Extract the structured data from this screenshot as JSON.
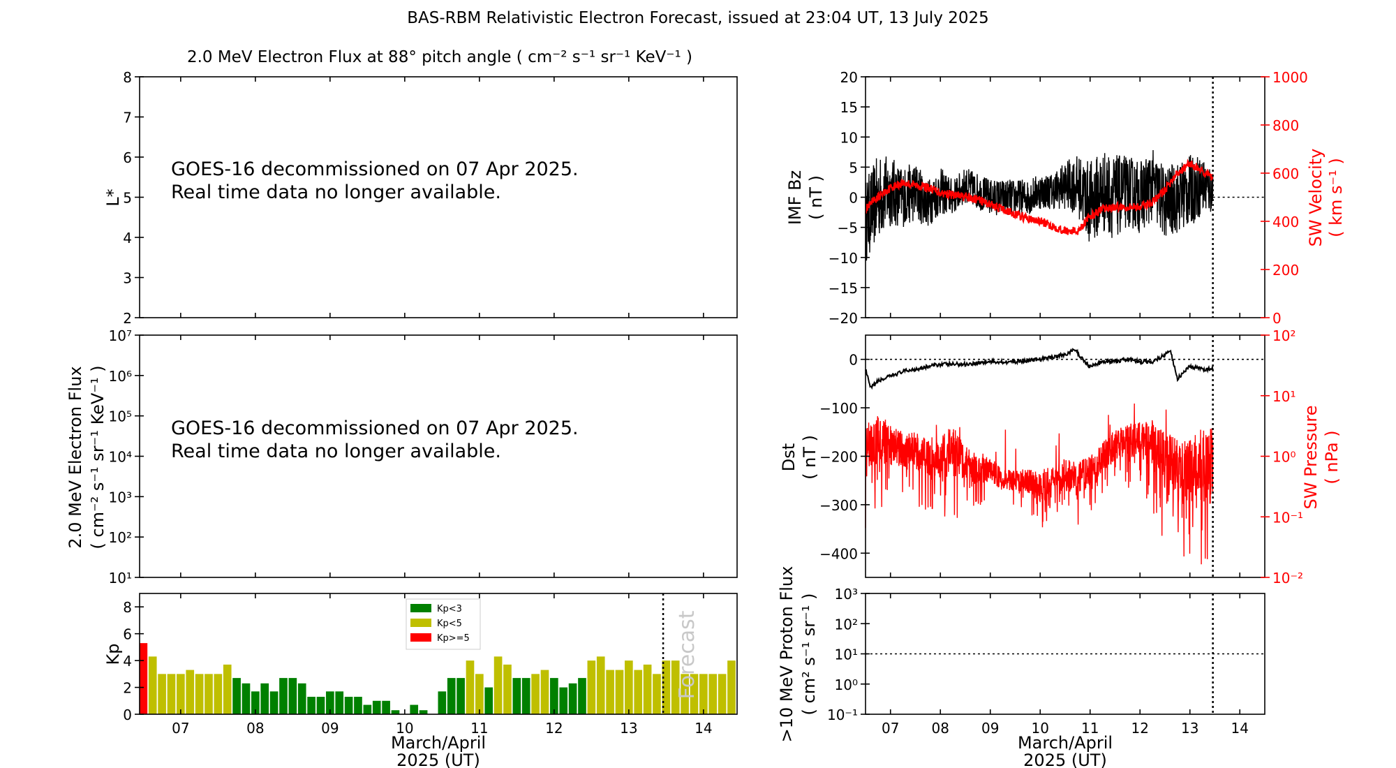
{
  "title": "BAS-RBM Relativistic Electron Forecast, issued at 23:04 UT, 13 July 2025",
  "xaxis_label_line1": "March/April",
  "xaxis_label_line2": "2025 (UT)",
  "decommission_note": {
    "line1": "GOES-16 decommissioned on 07 Apr 2025.",
    "line2": "Real time data no longer available."
  },
  "colors": {
    "red": "#ff0000",
    "black": "#000000",
    "kp_green": "#008000",
    "kp_yellow": "#bfbf00",
    "kp_red": "#ff0000"
  },
  "chart_data": [
    {
      "id": "lstar_panel",
      "type": "heatmap",
      "title": "2.0 MeV Electron Flux at 88° pitch angle ( cm⁻² s⁻¹ sr⁻¹ KeV⁻¹ )",
      "ylabel": "L*",
      "ylim": [
        2,
        8
      ],
      "yticks": [
        2,
        3,
        4,
        5,
        6,
        7,
        8
      ],
      "xlim": [
        6.45,
        14.45
      ],
      "note": "GOES-16 decommissioned on 07 Apr 2025. Real time data no longer available."
    },
    {
      "id": "electron_flux_panel",
      "type": "line",
      "ylabel": [
        "2.0 MeV Electron Flux",
        "( cm⁻² s⁻¹ sr⁻¹ KeV⁻¹ )"
      ],
      "yscale": "log",
      "ylim": [
        10,
        10000000
      ],
      "yticks": [
        "10¹",
        "10²",
        "10³",
        "10⁴",
        "10⁵",
        "10⁶",
        "10⁷"
      ],
      "xlim": [
        6.45,
        14.45
      ],
      "note": "GOES-16 decommissioned on 07 Apr 2025. Real time data no longer available."
    },
    {
      "id": "kp_panel",
      "type": "bar",
      "ylabel": "Kp",
      "ylim": [
        0,
        9
      ],
      "yticks": [
        0,
        2,
        4,
        6,
        8
      ],
      "xlim": [
        6.45,
        14.45
      ],
      "xticks": [
        "07",
        "08",
        "09",
        "10",
        "11",
        "12",
        "13",
        "14"
      ],
      "forecast_line_x": 13.46,
      "forecast_label": "Forecast",
      "legend": [
        "Kp<3",
        "Kp<5",
        "Kp>=5"
      ],
      "legend_position": "top-center",
      "bin_start": 6.5,
      "bin_width_days": 0.125,
      "kp_values": [
        5.3,
        4.3,
        3.0,
        3.0,
        3.0,
        3.3,
        3.0,
        3.0,
        3.0,
        3.7,
        2.7,
        2.3,
        1.7,
        2.3,
        1.7,
        2.7,
        2.7,
        2.3,
        1.3,
        1.3,
        1.7,
        1.7,
        1.3,
        1.3,
        0.7,
        1.0,
        1.0,
        0.3,
        0,
        0.7,
        0.3,
        0,
        1.7,
        2.7,
        2.7,
        4.0,
        3.0,
        2.0,
        4.3,
        3.7,
        2.7,
        2.7,
        3.0,
        3.3,
        2.7,
        2.0,
        2.3,
        2.7,
        4.0,
        4.3,
        3.3,
        3.3,
        4.0,
        3.3,
        3.7,
        3.0,
        4.0,
        4.0,
        3.0,
        3.0,
        3.0,
        3.0,
        3.0,
        4.0
      ]
    },
    {
      "id": "imf_sw_panel",
      "type": "line",
      "ylabel_left": [
        "IMF Bz",
        "( nT )"
      ],
      "ylabel_right": [
        "SW Velocity",
        "( km s⁻¹ )"
      ],
      "ylim_left": [
        -20,
        20
      ],
      "yticks_left": [
        -20,
        -15,
        -10,
        -5,
        0,
        5,
        10,
        15,
        20
      ],
      "ylim_right": [
        0,
        1000
      ],
      "yticks_right": [
        0,
        200,
        400,
        600,
        800,
        1000
      ],
      "xlim": [
        6.5,
        14.5
      ],
      "forecast_line_x": 13.46,
      "series": [
        {
          "name": "IMF Bz",
          "color": "#000000",
          "x": [
            6.5,
            6.75,
            7.0,
            7.25,
            7.5,
            7.75,
            8.0,
            8.25,
            8.5,
            8.75,
            9.0,
            9.25,
            9.5,
            9.75,
            10.0,
            10.25,
            10.5,
            10.75,
            11.0,
            11.25,
            11.5,
            11.75,
            12.0,
            12.25,
            12.5,
            12.75,
            13.0,
            13.25,
            13.46
          ],
          "values": [
            -4,
            0,
            1,
            0,
            1,
            -1,
            1,
            0,
            2,
            1,
            0,
            0,
            0,
            0,
            1,
            1,
            2,
            2,
            -1,
            1,
            0,
            1,
            0,
            2,
            -1,
            0,
            1,
            2,
            1
          ],
          "variability_nT": [
            7,
            7,
            6,
            5,
            5,
            4,
            4,
            3,
            3,
            3,
            3,
            3,
            3,
            3,
            3,
            3,
            4,
            5,
            7,
            7,
            7,
            6,
            6,
            6,
            6,
            6,
            6,
            5,
            4
          ]
        },
        {
          "name": "SW Velocity",
          "color": "#ff0000",
          "x": [
            6.5,
            6.75,
            7.0,
            7.25,
            7.5,
            7.75,
            8.0,
            8.25,
            8.5,
            8.75,
            9.0,
            9.25,
            9.5,
            9.75,
            10.0,
            10.25,
            10.5,
            10.75,
            11.0,
            11.25,
            11.5,
            11.75,
            12.0,
            12.25,
            12.5,
            12.75,
            13.0,
            13.25,
            13.46
          ],
          "values": [
            450,
            500,
            540,
            560,
            550,
            540,
            520,
            510,
            500,
            490,
            470,
            450,
            430,
            410,
            400,
            380,
            360,
            360,
            420,
            450,
            460,
            460,
            460,
            480,
            530,
            600,
            640,
            610,
            580
          ]
        }
      ]
    },
    {
      "id": "dst_pressure_panel",
      "type": "line",
      "ylabel_left": [
        "Dst",
        "( nT )"
      ],
      "ylabel_right": [
        "SW Pressure",
        "( nPa )"
      ],
      "ylim_left": [
        -450,
        50
      ],
      "yticks_left": [
        -400,
        -300,
        -200,
        -100,
        0
      ],
      "yscale_right": "log",
      "ylim_right": [
        0.01,
        100
      ],
      "yticks_right": [
        "10⁻²",
        "10⁻¹",
        "10⁰",
        "10¹",
        "10²"
      ],
      "xlim": [
        6.5,
        14.5
      ],
      "forecast_line_x": 13.46,
      "series": [
        {
          "name": "Dst",
          "color": "#000000",
          "x": [
            6.5,
            6.6,
            6.75,
            7.0,
            7.25,
            7.5,
            8.0,
            8.5,
            9.0,
            9.5,
            10.0,
            10.25,
            10.5,
            10.7,
            10.85,
            11.0,
            11.25,
            11.5,
            11.75,
            12.0,
            12.25,
            12.5,
            12.6,
            12.75,
            13.0,
            13.25,
            13.46
          ],
          "values": [
            -20,
            -60,
            -45,
            -35,
            -25,
            -20,
            -10,
            -10,
            -5,
            -5,
            0,
            5,
            10,
            20,
            0,
            -15,
            -5,
            -5,
            0,
            -5,
            -5,
            10,
            20,
            -40,
            -15,
            -20,
            -20
          ]
        },
        {
          "name": "SW Pressure",
          "color": "#ff0000",
          "x": [
            6.5,
            6.75,
            7.0,
            7.25,
            7.5,
            7.75,
            8.0,
            8.25,
            8.5,
            8.75,
            9.0,
            9.25,
            9.5,
            9.75,
            10.0,
            10.25,
            10.5,
            10.75,
            11.0,
            11.25,
            11.5,
            11.75,
            12.0,
            12.25,
            12.5,
            12.75,
            13.0,
            13.25,
            13.46
          ],
          "values": [
            1.2,
            2.0,
            1.5,
            1.2,
            1.2,
            1.0,
            1.0,
            1.2,
            0.8,
            0.6,
            0.6,
            0.4,
            0.4,
            0.4,
            0.3,
            0.4,
            0.5,
            0.4,
            0.6,
            1.0,
            1.5,
            1.8,
            2.0,
            1.5,
            0.8,
            0.6,
            0.5,
            0.7,
            0.8
          ],
          "variability_decades": [
            1.3,
            1.2,
            1.0,
            0.9,
            0.9,
            0.9,
            1.0,
            1.2,
            0.8,
            0.7,
            0.6,
            0.5,
            0.5,
            0.6,
            0.7,
            0.6,
            0.8,
            0.8,
            0.7,
            0.8,
            0.7,
            0.8,
            0.9,
            1.2,
            1.4,
            1.6,
            1.6,
            1.8,
            1.6
          ]
        }
      ]
    },
    {
      "id": "proton_flux_panel",
      "type": "line",
      "ylabel": [
        ">10 MeV Proton Flux",
        "( cm² s⁻¹ sr⁻¹ )"
      ],
      "yscale": "log",
      "ylim": [
        0.1,
        1000
      ],
      "yticks": [
        "10⁻¹",
        "10⁰",
        "10¹",
        "10²",
        "10³"
      ],
      "threshold": 10,
      "xlim": [
        6.5,
        14.5
      ],
      "xticks": [
        "07",
        "08",
        "09",
        "10",
        "11",
        "12",
        "13",
        "14"
      ],
      "forecast_line_x": 13.46
    }
  ]
}
